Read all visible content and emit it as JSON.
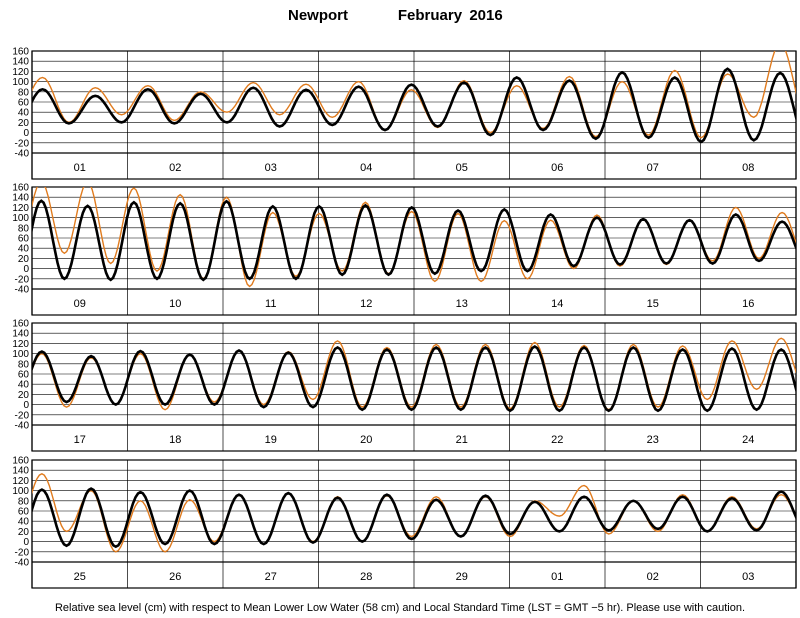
{
  "header": {
    "station": "Newport",
    "month": "February",
    "year": "2016"
  },
  "footer": {
    "note": "Relative sea level (cm) with respect to Mean Lower Low Water (58 cm) and Local Standard Time (LST = GMT −5 hr). Please use with caution."
  },
  "colors": {
    "predicted": "#000000",
    "observed": "#e07b1e",
    "grid": "#000000",
    "background": "#ffffff"
  },
  "chart_data": [
    {
      "type": "line",
      "panel": 1,
      "x_unit": "day",
      "days": [
        "01",
        "02",
        "03",
        "04",
        "05",
        "06",
        "07",
        "08"
      ],
      "y_ticks": [
        -40,
        -20,
        0,
        20,
        40,
        60,
        80,
        100,
        120,
        140,
        160
      ],
      "ylim": [
        -40,
        160
      ],
      "grid": true,
      "series": [
        {
          "role": "predicted",
          "color": "#000000",
          "highs": [
            85,
            72,
            85,
            76,
            88,
            84,
            90,
            94,
            98,
            108,
            102,
            118,
            108,
            125,
            117
          ],
          "lows": [
            17,
            18,
            20,
            18,
            20,
            12,
            15,
            5,
            12,
            -5,
            5,
            -12,
            -10,
            -18,
            -15
          ]
        },
        {
          "role": "observed",
          "color": "#e07b1e",
          "highs": [
            108,
            88,
            92,
            80,
            98,
            95,
            100,
            84,
            102,
            92,
            110,
            100,
            122,
            115,
            175
          ],
          "lows": [
            38,
            20,
            35,
            24,
            40,
            35,
            30,
            5,
            10,
            0,
            8,
            -8,
            -5,
            -10,
            30
          ]
        }
      ]
    },
    {
      "type": "line",
      "panel": 2,
      "x_unit": "day",
      "days": [
        "09",
        "10",
        "11",
        "12",
        "13",
        "14",
        "15",
        "16"
      ],
      "y_ticks": [
        -40,
        -20,
        0,
        20,
        40,
        60,
        80,
        100,
        120,
        140,
        160
      ],
      "ylim": [
        -40,
        160
      ],
      "grid": true,
      "series": [
        {
          "role": "predicted",
          "color": "#000000",
          "highs": [
            133,
            123,
            130,
            128,
            132,
            122,
            122,
            124,
            120,
            114,
            116,
            106,
            100,
            97,
            95,
            106,
            92
          ],
          "lows": [
            -20,
            -20,
            -22,
            -20,
            -22,
            -20,
            -20,
            -12,
            -12,
            -10,
            -5,
            -5,
            5,
            8,
            10,
            10,
            15
          ]
        },
        {
          "role": "observed",
          "color": "#e07b1e",
          "highs": [
            170,
            170,
            158,
            145,
            140,
            110,
            108,
            130,
            112,
            108,
            94,
            95,
            105,
            96,
            94,
            120,
            110
          ],
          "lows": [
            40,
            30,
            10,
            -5,
            -20,
            -35,
            -15,
            -5,
            -10,
            -25,
            -25,
            -20,
            0,
            5,
            8,
            15,
            20
          ]
        }
      ]
    },
    {
      "type": "line",
      "panel": 3,
      "x_unit": "day",
      "days": [
        "17",
        "18",
        "19",
        "20",
        "21",
        "22",
        "23",
        "24"
      ],
      "y_ticks": [
        -40,
        -20,
        0,
        20,
        40,
        60,
        80,
        100,
        120,
        140,
        160
      ],
      "ylim": [
        -40,
        160
      ],
      "grid": true,
      "series": [
        {
          "role": "predicted",
          "color": "#000000",
          "highs": [
            104,
            95,
            105,
            98,
            106,
            102,
            112,
            108,
            112,
            112,
            114,
            112,
            112,
            108,
            110,
            108
          ],
          "lows": [
            10,
            5,
            0,
            0,
            0,
            -5,
            -5,
            -10,
            -10,
            -10,
            -12,
            -12,
            -12,
            -12,
            -12,
            -10
          ]
        },
        {
          "role": "observed",
          "color": "#e07b1e",
          "highs": [
            100,
            92,
            100,
            98,
            106,
            104,
            125,
            112,
            118,
            118,
            122,
            116,
            118,
            115,
            125,
            130
          ],
          "lows": [
            10,
            -5,
            0,
            -10,
            5,
            0,
            10,
            -5,
            -5,
            -5,
            -8,
            -5,
            -10,
            -5,
            10,
            30
          ]
        }
      ]
    },
    {
      "type": "line",
      "panel": 4,
      "x_unit": "day",
      "days": [
        "25",
        "26",
        "27",
        "28",
        "29",
        "01",
        "02",
        "03"
      ],
      "y_ticks": [
        -40,
        -20,
        0,
        20,
        40,
        60,
        80,
        100,
        120,
        140,
        160
      ],
      "ylim": [
        -40,
        160
      ],
      "grid": true,
      "series": [
        {
          "role": "predicted",
          "color": "#000000",
          "highs": [
            102,
            104,
            97,
            100,
            92,
            95,
            86,
            92,
            82,
            90,
            78,
            88,
            80,
            88,
            85,
            98
          ],
          "lows": [
            -10,
            -8,
            -10,
            -5,
            -5,
            -5,
            -2,
            0,
            5,
            10,
            15,
            20,
            22,
            25,
            20,
            22
          ]
        },
        {
          "role": "observed",
          "color": "#e07b1e",
          "highs": [
            133,
            100,
            80,
            82,
            92,
            95,
            88,
            90,
            88,
            88,
            80,
            110,
            80,
            92,
            88,
            92
          ],
          "lows": [
            30,
            20,
            -20,
            -20,
            0,
            -5,
            0,
            0,
            10,
            10,
            10,
            50,
            15,
            20,
            20,
            25
          ]
        }
      ]
    }
  ]
}
